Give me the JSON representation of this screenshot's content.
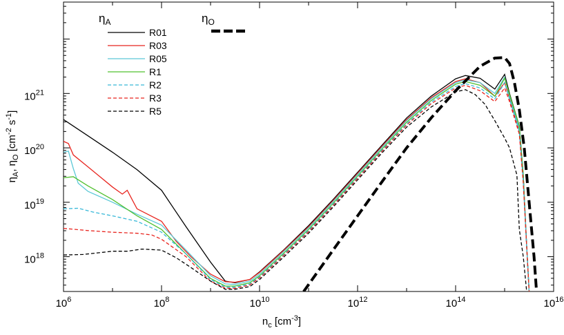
{
  "chart_data": {
    "type": "line",
    "xscale": "log10",
    "yscale": "log10",
    "xlim_exp": [
      6,
      16
    ],
    "ylim_exp": [
      17.36,
      22.68
    ],
    "xlabel": {
      "base": "n",
      "sub": "c",
      "unit_open": " [cm",
      "unit_sup": "-3",
      "unit_close": "]"
    },
    "ylabel": {
      "p1": "η",
      "s1": "A",
      "p2": ", η",
      "s2": "O",
      "p3": " [cm",
      "sup1": "-2",
      "p4": " s",
      "sup2": "-1",
      "p5": "]"
    },
    "x_ticks": [
      {
        "exp": 6,
        "base": "10",
        "sup": "6"
      },
      {
        "exp": 8,
        "base": "10",
        "sup": "8"
      },
      {
        "exp": 10,
        "base": "10",
        "sup": "10"
      },
      {
        "exp": 12,
        "base": "10",
        "sup": "12"
      },
      {
        "exp": 14,
        "base": "10",
        "sup": "14"
      },
      {
        "exp": 16,
        "base": "10",
        "sup": "16"
      }
    ],
    "y_ticks": [
      {
        "exp": 18,
        "base": "10",
        "sup": "18"
      },
      {
        "exp": 19,
        "base": "10",
        "sup": "19"
      },
      {
        "exp": 20,
        "base": "10",
        "sup": "20"
      },
      {
        "exp": 21,
        "base": "10",
        "sup": "21"
      }
    ],
    "legend_left": {
      "title": "η",
      "title_sub": "A"
    },
    "legend_right": {
      "title": "η",
      "title_sub": "O"
    },
    "series": [
      {
        "name": "R01",
        "group": "eta_A",
        "color": "#000000",
        "dash": "solid",
        "points": [
          [
            6,
            20.52
          ],
          [
            6.5,
            20.22
          ],
          [
            7,
            19.92
          ],
          [
            7.5,
            19.6
          ],
          [
            8,
            19.22
          ],
          [
            8.5,
            18.55
          ],
          [
            9,
            17.9
          ],
          [
            9.3,
            17.55
          ],
          [
            9.5,
            17.52
          ],
          [
            9.8,
            17.58
          ],
          [
            10,
            17.72
          ],
          [
            10.5,
            18.13
          ],
          [
            11,
            18.57
          ],
          [
            11.5,
            19.05
          ],
          [
            12,
            19.55
          ],
          [
            12.5,
            20.05
          ],
          [
            13,
            20.55
          ],
          [
            13.5,
            20.95
          ],
          [
            14,
            21.27
          ],
          [
            14.2,
            21.33
          ],
          [
            14.5,
            21.28
          ],
          [
            14.8,
            21.08
          ],
          [
            15.0,
            21.35
          ],
          [
            15.1,
            21.0
          ],
          [
            15.3,
            20.4
          ],
          [
            15.38,
            19.5
          ],
          [
            15.45,
            18.2
          ],
          [
            15.5,
            17.36
          ]
        ]
      },
      {
        "name": "R03",
        "group": "eta_A",
        "color": "#e8251f",
        "dash": "solid",
        "points": [
          [
            6,
            20.12
          ],
          [
            6.1,
            20.08
          ],
          [
            6.2,
            19.87
          ],
          [
            6.5,
            19.65
          ],
          [
            7,
            19.28
          ],
          [
            7.2,
            19.15
          ],
          [
            7.3,
            19.22
          ],
          [
            7.4,
            19.05
          ],
          [
            7.5,
            18.88
          ],
          [
            8,
            18.65
          ],
          [
            8.3,
            18.28
          ],
          [
            8.6,
            18.0
          ],
          [
            9,
            17.68
          ],
          [
            9.3,
            17.54
          ],
          [
            9.5,
            17.53
          ],
          [
            9.8,
            17.58
          ],
          [
            10,
            17.71
          ],
          [
            10.5,
            18.12
          ],
          [
            11,
            18.55
          ],
          [
            11.5,
            19.03
          ],
          [
            12,
            19.53
          ],
          [
            12.5,
            20.03
          ],
          [
            13,
            20.52
          ],
          [
            13.5,
            20.92
          ],
          [
            14,
            21.22
          ],
          [
            14.2,
            21.27
          ],
          [
            14.5,
            21.2
          ],
          [
            14.8,
            20.95
          ],
          [
            15.0,
            21.2
          ],
          [
            15.1,
            20.9
          ],
          [
            15.3,
            20.3
          ],
          [
            15.38,
            19.4
          ],
          [
            15.45,
            18.2
          ],
          [
            15.5,
            17.36
          ]
        ]
      },
      {
        "name": "R05",
        "group": "eta_A",
        "color": "#5bc8d6",
        "dash": "solid",
        "points": [
          [
            6,
            19.92
          ],
          [
            6.1,
            19.94
          ],
          [
            6.2,
            19.62
          ],
          [
            6.3,
            19.35
          ],
          [
            6.5,
            19.2
          ],
          [
            7,
            19.0
          ],
          [
            7.5,
            18.78
          ],
          [
            8,
            18.58
          ],
          [
            8.5,
            18.12
          ],
          [
            9,
            17.65
          ],
          [
            9.3,
            17.5
          ],
          [
            9.5,
            17.49
          ],
          [
            9.8,
            17.55
          ],
          [
            10,
            17.68
          ],
          [
            10.5,
            18.1
          ],
          [
            11,
            18.53
          ],
          [
            11.5,
            19.01
          ],
          [
            12,
            19.51
          ],
          [
            12.5,
            20.01
          ],
          [
            13,
            20.5
          ],
          [
            13.5,
            20.9
          ],
          [
            14,
            21.2
          ],
          [
            14.2,
            21.25
          ],
          [
            14.5,
            21.2
          ],
          [
            14.8,
            21.0
          ],
          [
            15.0,
            21.3
          ],
          [
            15.1,
            20.95
          ],
          [
            15.3,
            20.35
          ],
          [
            15.38,
            19.45
          ],
          [
            15.45,
            18.2
          ],
          [
            15.5,
            17.36
          ]
        ]
      },
      {
        "name": "R1",
        "group": "eta_A",
        "color": "#4fc02e",
        "dash": "solid",
        "points": [
          [
            6,
            19.45
          ],
          [
            6.2,
            19.47
          ],
          [
            6.5,
            19.3
          ],
          [
            7,
            19.05
          ],
          [
            7.5,
            18.75
          ],
          [
            8,
            18.5
          ],
          [
            8.5,
            18.05
          ],
          [
            9,
            17.6
          ],
          [
            9.3,
            17.46
          ],
          [
            9.5,
            17.46
          ],
          [
            9.8,
            17.52
          ],
          [
            10,
            17.65
          ],
          [
            10.5,
            18.07
          ],
          [
            11,
            18.5
          ],
          [
            11.5,
            18.98
          ],
          [
            12,
            19.48
          ],
          [
            12.5,
            19.98
          ],
          [
            13,
            20.47
          ],
          [
            13.5,
            20.87
          ],
          [
            14,
            21.17
          ],
          [
            14.2,
            21.22
          ],
          [
            14.5,
            21.15
          ],
          [
            14.8,
            20.95
          ],
          [
            15.0,
            21.28
          ],
          [
            15.1,
            20.98
          ],
          [
            15.3,
            20.4
          ],
          [
            15.38,
            19.5
          ],
          [
            15.45,
            18.2
          ],
          [
            15.5,
            17.36
          ]
        ]
      },
      {
        "name": "R2",
        "group": "eta_A",
        "color": "#37b8d8",
        "dash": "dashed",
        "points": [
          [
            6,
            18.88
          ],
          [
            6.3,
            18.89
          ],
          [
            6.6,
            18.82
          ],
          [
            7,
            18.75
          ],
          [
            7.5,
            18.65
          ],
          [
            8,
            18.45
          ],
          [
            8.5,
            18.05
          ],
          [
            9,
            17.58
          ],
          [
            9.3,
            17.44
          ],
          [
            9.5,
            17.44
          ],
          [
            9.8,
            17.5
          ],
          [
            10,
            17.63
          ],
          [
            10.5,
            18.05
          ],
          [
            11,
            18.48
          ],
          [
            11.5,
            18.96
          ],
          [
            12,
            19.46
          ],
          [
            12.5,
            19.96
          ],
          [
            13,
            20.44
          ],
          [
            13.5,
            20.84
          ],
          [
            14,
            21.13
          ],
          [
            14.2,
            21.18
          ],
          [
            14.5,
            21.1
          ],
          [
            14.8,
            20.9
          ],
          [
            15.0,
            21.2
          ],
          [
            15.1,
            20.9
          ],
          [
            15.3,
            20.3
          ],
          [
            15.38,
            19.4
          ],
          [
            15.45,
            18.2
          ],
          [
            15.5,
            17.36
          ]
        ]
      },
      {
        "name": "R3",
        "group": "eta_A",
        "color": "#e8251f",
        "dash": "dashed",
        "points": [
          [
            6,
            18.52
          ],
          [
            6.5,
            18.48
          ],
          [
            7,
            18.45
          ],
          [
            7.5,
            18.43
          ],
          [
            7.8,
            18.4
          ],
          [
            8,
            18.32
          ],
          [
            8.5,
            18.0
          ],
          [
            9,
            17.55
          ],
          [
            9.3,
            17.42
          ],
          [
            9.5,
            17.42
          ],
          [
            9.8,
            17.48
          ],
          [
            10,
            17.61
          ],
          [
            10.5,
            18.03
          ],
          [
            11,
            18.46
          ],
          [
            11.5,
            18.94
          ],
          [
            12,
            19.44
          ],
          [
            12.5,
            19.94
          ],
          [
            13,
            20.42
          ],
          [
            13.5,
            20.81
          ],
          [
            14,
            21.1
          ],
          [
            14.2,
            21.15
          ],
          [
            14.5,
            21.05
          ],
          [
            14.8,
            20.85
          ],
          [
            15.0,
            21.1
          ],
          [
            15.1,
            20.85
          ],
          [
            15.3,
            20.25
          ],
          [
            15.38,
            19.35
          ],
          [
            15.45,
            18.2
          ],
          [
            15.5,
            17.36
          ]
        ]
      },
      {
        "name": "R5",
        "group": "eta_A",
        "color": "#000000",
        "dash": "dashed",
        "points": [
          [
            6,
            18.03
          ],
          [
            6.4,
            18.04
          ],
          [
            6.8,
            18.08
          ],
          [
            7,
            18.1
          ],
          [
            7.3,
            18.1
          ],
          [
            7.6,
            18.14
          ],
          [
            8,
            18.12
          ],
          [
            8.3,
            17.98
          ],
          [
            8.6,
            17.8
          ],
          [
            9,
            17.55
          ],
          [
            9.3,
            17.4
          ],
          [
            9.5,
            17.4
          ],
          [
            9.8,
            17.45
          ],
          [
            10,
            17.58
          ],
          [
            10.5,
            18.0
          ],
          [
            11,
            18.43
          ],
          [
            11.5,
            18.91
          ],
          [
            12,
            19.41
          ],
          [
            12.5,
            19.91
          ],
          [
            13,
            20.38
          ],
          [
            13.5,
            20.75
          ],
          [
            14,
            21.03
          ],
          [
            14.2,
            21.07
          ],
          [
            14.4,
            20.98
          ],
          [
            14.6,
            20.8
          ],
          [
            14.8,
            20.5
          ],
          [
            15.0,
            20.18
          ],
          [
            15.1,
            20.0
          ],
          [
            15.25,
            19.5
          ],
          [
            15.3,
            18.5
          ],
          [
            15.38,
            18.0
          ],
          [
            15.45,
            17.36
          ]
        ]
      }
    ],
    "eta_O": {
      "name": "eta_O",
      "color": "#000000",
      "dash": "thick-dashed",
      "points": [
        [
          10.9,
          17.36
        ],
        [
          11.5,
          18.12
        ],
        [
          12,
          18.75
        ],
        [
          12.5,
          19.38
        ],
        [
          13,
          20.0
        ],
        [
          13.5,
          20.55
        ],
        [
          14,
          21.05
        ],
        [
          14.5,
          21.5
        ],
        [
          14.8,
          21.65
        ],
        [
          15.0,
          21.66
        ],
        [
          15.1,
          21.55
        ],
        [
          15.2,
          21.2
        ],
        [
          15.3,
          20.7
        ],
        [
          15.4,
          20.0
        ],
        [
          15.5,
          19.0
        ],
        [
          15.6,
          18.0
        ],
        [
          15.65,
          17.36
        ]
      ]
    }
  }
}
